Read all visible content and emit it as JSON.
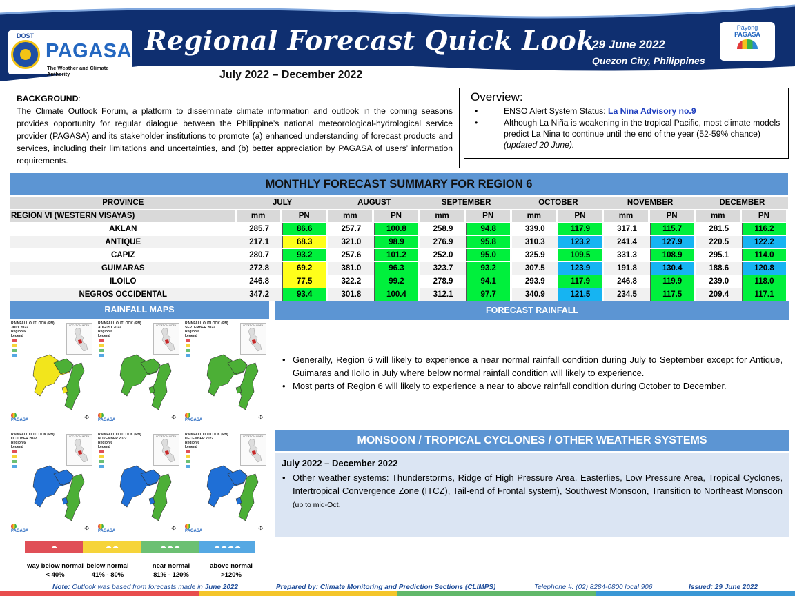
{
  "header": {
    "org_short": "DOST",
    "org_name": "PAGASA",
    "org_tagline": "The Weather and Climate Authority",
    "title": "Regional Forecast Quick Look",
    "period": "July 2022 – December 2022",
    "date": "29 June 2022",
    "place": "Quezon City, Philippines",
    "badge_line1": "Payong",
    "badge_line2": "PAGASA",
    "colors": {
      "navy": "#0f2f70",
      "accent_blue": "#5c95d3"
    }
  },
  "background": {
    "label": "BACKGROUND",
    "text": "The Climate Outlook Forum, a platform to disseminate climate information and outlook in the coming seasons provides opportunity for regular dialogue between the Philippine’s national meteorological-hydrological service provider (PAGASA) and its stakeholder institutions to promote (a) enhanced understanding of forecast products and services, including their limitations and uncertainties, and (b) better appreciation by PAGASA of users’ information requirements."
  },
  "overview": {
    "title": "Overview:",
    "enso_prefix": "ENSO Alert System Status: ",
    "enso_status": "La Nina Advisory no.9",
    "note_text": "Although La Niña is weakening in the tropical Pacific, most climate models predict La Nina to continue until the end of the year (52-59% chance) ",
    "note_updated": "(updated 20 June)."
  },
  "table": {
    "title": "MONTHLY FORECAST SUMMARY FOR REGION 6",
    "province_header": "PROVINCE",
    "region_label": "REGION VI (WESTERN VISAYAS)",
    "mm_label": "mm",
    "pn_label": "PN",
    "months": [
      "JULY",
      "AUGUST",
      "SEPTEMBER",
      "OCTOBER",
      "NOVEMBER",
      "DECEMBER"
    ],
    "colors": {
      "above_normal": "#16b4f2",
      "near_normal": "#00f03c",
      "below_normal": "#ffff1a"
    },
    "rows": [
      {
        "province": "AKLAN",
        "values": [
          {
            "mm": "285.7",
            "pn": "86.6",
            "cat": "green"
          },
          {
            "mm": "257.7",
            "pn": "100.8",
            "cat": "green"
          },
          {
            "mm": "258.9",
            "pn": "94.8",
            "cat": "green"
          },
          {
            "mm": "339.0",
            "pn": "117.9",
            "cat": "green"
          },
          {
            "mm": "317.1",
            "pn": "115.7",
            "cat": "green"
          },
          {
            "mm": "281.5",
            "pn": "116.2",
            "cat": "green"
          }
        ]
      },
      {
        "province": "ANTIQUE",
        "values": [
          {
            "mm": "217.1",
            "pn": "68.3",
            "cat": "yellow"
          },
          {
            "mm": "321.0",
            "pn": "98.9",
            "cat": "green"
          },
          {
            "mm": "276.9",
            "pn": "95.8",
            "cat": "green"
          },
          {
            "mm": "310.3",
            "pn": "123.2",
            "cat": "blue"
          },
          {
            "mm": "241.4",
            "pn": "127.9",
            "cat": "blue"
          },
          {
            "mm": "220.5",
            "pn": "122.2",
            "cat": "blue"
          }
        ]
      },
      {
        "province": "CAPIZ",
        "values": [
          {
            "mm": "280.7",
            "pn": "93.2",
            "cat": "green"
          },
          {
            "mm": "257.6",
            "pn": "101.2",
            "cat": "green"
          },
          {
            "mm": "252.0",
            "pn": "95.0",
            "cat": "green"
          },
          {
            "mm": "325.9",
            "pn": "109.5",
            "cat": "green"
          },
          {
            "mm": "331.3",
            "pn": "108.9",
            "cat": "green"
          },
          {
            "mm": "295.1",
            "pn": "114.0",
            "cat": "green"
          }
        ]
      },
      {
        "province": "GUIMARAS",
        "values": [
          {
            "mm": "272.8",
            "pn": "69.2",
            "cat": "yellow"
          },
          {
            "mm": "381.0",
            "pn": "96.3",
            "cat": "green"
          },
          {
            "mm": "323.7",
            "pn": "93.2",
            "cat": "green"
          },
          {
            "mm": "307.5",
            "pn": "123.9",
            "cat": "blue"
          },
          {
            "mm": "191.8",
            "pn": "130.4",
            "cat": "blue"
          },
          {
            "mm": "188.6",
            "pn": "120.8",
            "cat": "blue"
          }
        ]
      },
      {
        "province": "ILOILO",
        "values": [
          {
            "mm": "246.8",
            "pn": "77.5",
            "cat": "yellow"
          },
          {
            "mm": "322.2",
            "pn": "99.2",
            "cat": "green"
          },
          {
            "mm": "278.9",
            "pn": "94.1",
            "cat": "green"
          },
          {
            "mm": "293.9",
            "pn": "117.9",
            "cat": "green"
          },
          {
            "mm": "246.8",
            "pn": "119.9",
            "cat": "green"
          },
          {
            "mm": "239.0",
            "pn": "118.0",
            "cat": "green"
          }
        ]
      },
      {
        "province": "NEGROS OCCIDENTAL",
        "values": [
          {
            "mm": "347.2",
            "pn": "93.4",
            "cat": "green"
          },
          {
            "mm": "301.8",
            "pn": "100.4",
            "cat": "green"
          },
          {
            "mm": "312.1",
            "pn": "97.7",
            "cat": "green"
          },
          {
            "mm": "340.9",
            "pn": "121.5",
            "cat": "blue"
          },
          {
            "mm": "234.5",
            "pn": "117.5",
            "cat": "green"
          },
          {
            "mm": "209.4",
            "pn": "117.1",
            "cat": "green"
          }
        ]
      }
    ]
  },
  "rainfall_maps": {
    "title": "RAINFALL MAPS",
    "panels": [
      {
        "head1": "RAINFALL OUTLOOK (PN)",
        "head2": "JULY 2022",
        "head3": "Region 6",
        "scheme": "july"
      },
      {
        "head1": "RAINFALL OUTLOOK (PN)",
        "head2": "AUGUST 2022",
        "head3": "Region 6",
        "scheme": "green"
      },
      {
        "head1": "RAINFALL OUTLOOK (PN)",
        "head2": "SEPTEMBER 2022",
        "head3": "Region 6",
        "scheme": "green"
      },
      {
        "head1": "RAINFALL OUTLOOK (PN)",
        "head2": "OCTOBER 2022",
        "head3": "Region 6",
        "scheme": "blue"
      },
      {
        "head1": "RAINFALL OUTLOOK (PN)",
        "head2": "NOVEMBER 2022",
        "head3": "Region 6",
        "scheme": "blue"
      },
      {
        "head1": "RAINFALL OUTLOOK (PN)",
        "head2": "DECEMBER 2022",
        "head3": "Region 6",
        "scheme": "blue"
      }
    ],
    "legend_word": "Legend",
    "inset_label": "LOCATION INDEX",
    "panel_logo": "PAGASA",
    "legend": [
      {
        "label": "way below normal",
        "range": "< 40%",
        "color": "#e04f57"
      },
      {
        "label": "below normal",
        "range": "41% - 80%",
        "color": "#f6d43a"
      },
      {
        "label": "near normal",
        "range": "81% - 120%",
        "color": "#6cc073"
      },
      {
        "label": "above normal",
        "range": ">120%",
        "color": "#55a8e3"
      }
    ]
  },
  "forecast_rainfall": {
    "title": "FORECAST RAINFALL",
    "bullets": [
      "Generally, Region 6 will likely to experience a near normal rainfall condition during July to September except for Antique, Guimaras and Iloilo in July where below normal rainfall condition will likely to experience.",
      "Most parts of Region 6 will likely to experience a near to above rainfall condition during October to December."
    ]
  },
  "monsoon": {
    "title": "MONSOON / TROPICAL CYCLONES / OTHER WEATHER SYSTEMS",
    "range": "July 2022 – December 2022",
    "bullet": "Other weather systems: Thunderstorms,  Ridge of High Pressure Area,  Easterlies, Low Pressure Area, Tropical Cyclones, Intertropical Convergence Zone (ITCZ), Tail-end of Frontal system), Southwest Monsoon, Transition to Northeast Monsoon ",
    "bullet_small": "(up to mid-Oct",
    "bullet_end": "."
  },
  "footer": {
    "note_label": "Note:",
    "note_text": " Outlook was based from forecasts made in ",
    "note_month": "June 2022",
    "prepared": "Prepared by: Climate Monitoring and Prediction Sections (CLIMPS)",
    "phone": "Telephone #: (02) 8284-0800 local 906",
    "issued": "Issued: 29 June 2022"
  }
}
